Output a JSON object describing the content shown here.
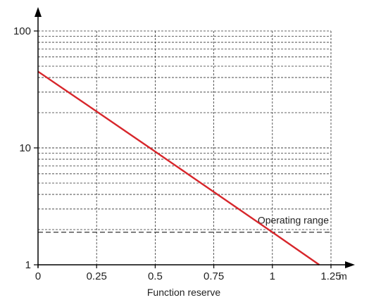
{
  "chart_data": {
    "type": "line",
    "title": "",
    "xlabel": "Function reserve",
    "x_unit": "m",
    "ylabel": "",
    "x_ticks": [
      "0",
      "0.25",
      "0.5",
      "0.75",
      "1",
      "1.25"
    ],
    "x_tick_values": [
      0,
      0.25,
      0.5,
      0.75,
      1,
      1.25
    ],
    "y_ticks": [
      "1",
      "10",
      "100"
    ],
    "y_tick_values": [
      1,
      10,
      100
    ],
    "xlim": [
      0,
      1.25
    ],
    "ylim": [
      1,
      100
    ],
    "y_scale": "log",
    "grid": true,
    "series": [
      {
        "color": "#d7262b",
        "x": [
          0,
          0.25,
          0.5,
          0.75,
          1,
          1.2
        ],
        "y": [
          45,
          20.5,
          9.3,
          4.2,
          1.9,
          1
        ]
      }
    ],
    "threshold": {
      "y": 1.9,
      "label": "Operating range"
    }
  }
}
